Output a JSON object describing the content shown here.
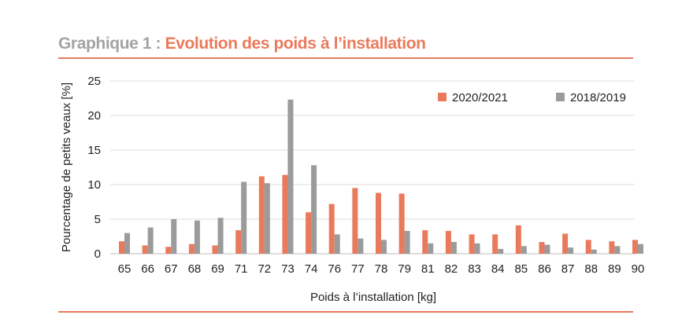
{
  "heading": {
    "prefix": "Graphique 1 : ",
    "title": "Evolution des poids à l’installation"
  },
  "colors": {
    "series1": "#ea7a5c",
    "series2": "#9b9b9b",
    "accent": "#ea7a5c",
    "prefix": "#a3a3a3",
    "grid": "#dcdcdc"
  },
  "chart_data": {
    "type": "bar",
    "title": "Evolution des poids à l’installation",
    "xlabel": "Poids à l’installation [kg]",
    "ylabel": "Pourcentage de petits veaux [%]",
    "ylim": [
      0,
      25
    ],
    "yticks": [
      0,
      5,
      10,
      15,
      20,
      25
    ],
    "grid": true,
    "legend": "top-right",
    "categories": [
      "65",
      "66",
      "67",
      "68",
      "69",
      "71",
      "72",
      "73",
      "74",
      "76",
      "77",
      "78",
      "79",
      "81",
      "82",
      "83",
      "84",
      "85",
      "86",
      "87",
      "88",
      "89",
      "90"
    ],
    "series": [
      {
        "name": "2020/2021",
        "values": [
          1.8,
          1.2,
          1.0,
          1.4,
          1.2,
          3.4,
          11.2,
          11.4,
          6.0,
          7.2,
          9.5,
          8.8,
          8.7,
          3.4,
          3.3,
          2.8,
          2.8,
          4.1,
          1.7,
          2.9,
          2.0,
          1.8,
          2.0
        ]
      },
      {
        "name": "2018/2019",
        "values": [
          3.0,
          3.8,
          5.0,
          4.8,
          5.2,
          10.4,
          10.2,
          22.3,
          12.8,
          2.8,
          2.2,
          2.0,
          3.3,
          1.5,
          1.7,
          1.5,
          0.7,
          1.1,
          1.3,
          0.9,
          0.6,
          1.1,
          1.4
        ]
      }
    ]
  }
}
